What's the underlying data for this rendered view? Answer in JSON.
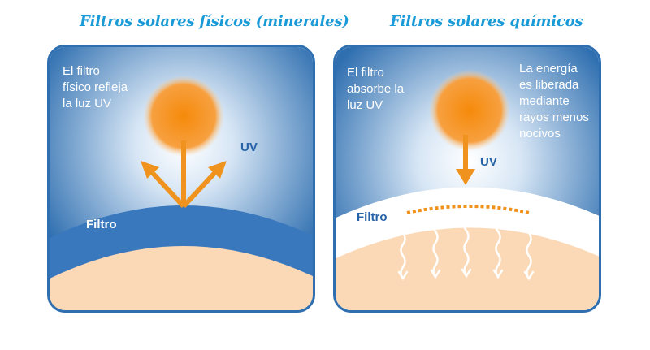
{
  "titles": {
    "physical": "Filtros solares físicos (minerales)",
    "chemical": "Filtros solares químicos"
  },
  "physical_panel": {
    "description_lines": [
      "El filtro",
      "físico refleja",
      "la luz UV"
    ],
    "uv_label": "UV",
    "filter_label": "Filtro"
  },
  "chemical_panel": {
    "description_lines": [
      "El filtro",
      "absorbe la",
      "luz UV"
    ],
    "energy_lines": [
      "La energía",
      "es liberada",
      "mediante",
      "rayos menos",
      "nocivos"
    ],
    "uv_label": "UV",
    "filter_label": "Filtro"
  },
  "colors": {
    "title": "#1a9bd7",
    "panel_border": "#2f6fb0",
    "sky_dark": "#2f6fb0",
    "filter_band": "#3a78bd",
    "skin": "#fbd9b6",
    "sun": "#f58a0a",
    "arrow": "#f0931e",
    "uv_text": "#2563a6"
  },
  "icons": {
    "sun": "sun-icon",
    "reflected_arrows": "reflection-arrows-icon",
    "down_arrow": "arrow-down-icon",
    "wavy_arrows": "wavy-up-arrows-icon"
  }
}
